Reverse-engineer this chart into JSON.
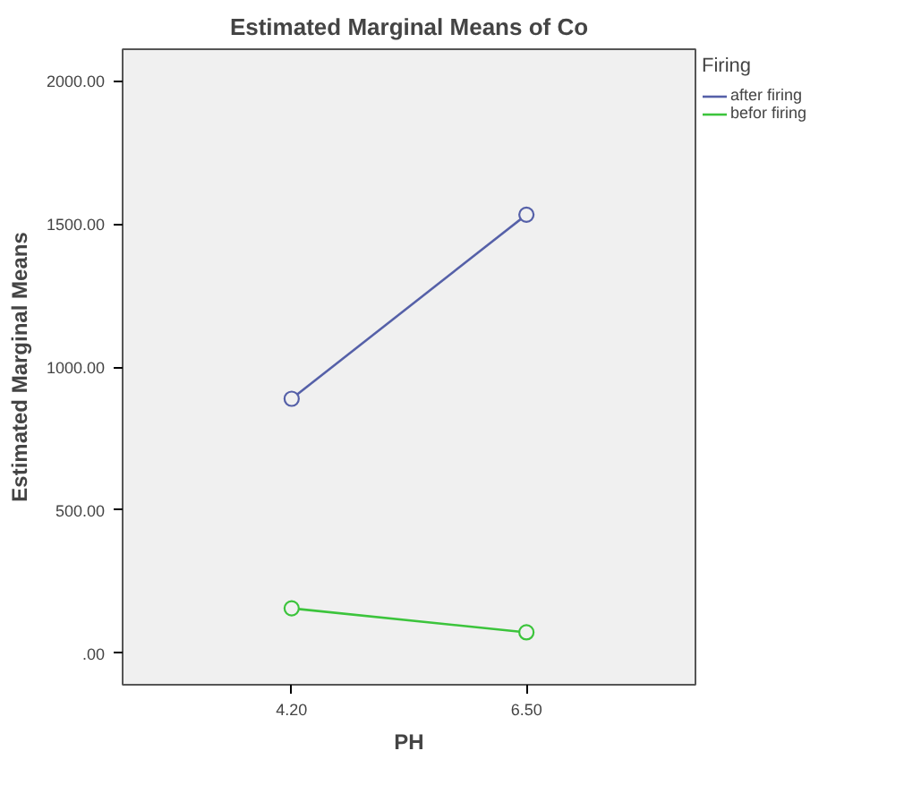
{
  "chart_data": {
    "type": "line",
    "title": "Estimated Marginal Means of Co",
    "xlabel": "PH",
    "ylabel": "Estimated Marginal Means",
    "legend_title": "Firing",
    "categories": [
      "4.20",
      "6.50"
    ],
    "series": [
      {
        "name": "after firing",
        "color": "#5560a8",
        "values": [
          889,
          1532
        ]
      },
      {
        "name": "befor firing",
        "color": "#3cc43c",
        "values": [
          157,
          73
        ]
      }
    ],
    "ylim": [
      -110,
      2110
    ],
    "yticks": [
      {
        "value": 0,
        "label": ".00"
      },
      {
        "value": 500,
        "label": "500.00"
      },
      {
        "value": 1000,
        "label": "1000.00"
      },
      {
        "value": 1500,
        "label": "1500.00"
      },
      {
        "value": 2000,
        "label": "2000.00"
      }
    ],
    "grid": false,
    "legend": "right",
    "marker": "circle",
    "line_style": "solid"
  }
}
